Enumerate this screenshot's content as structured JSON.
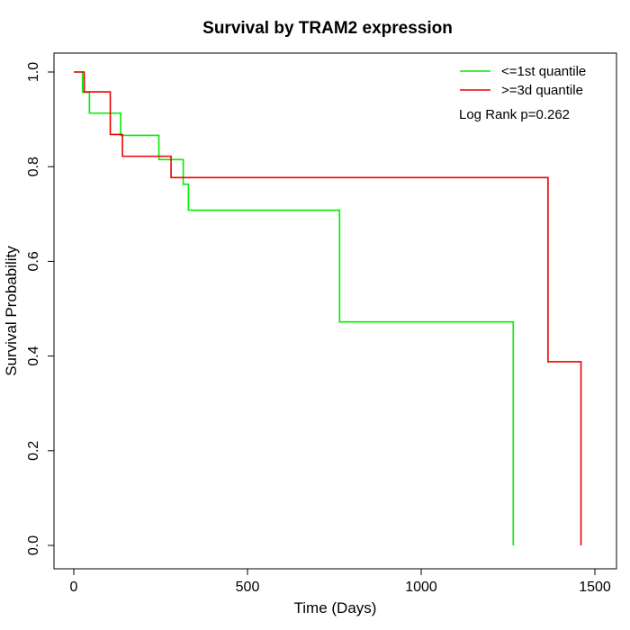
{
  "chart_data": {
    "type": "line",
    "title": "Survival by TRAM2 expression",
    "xlabel": "Time (Days)",
    "ylabel": "Survival Probability",
    "xlim": [
      0,
      1500
    ],
    "ylim": [
      0,
      1.0
    ],
    "x_ticks": [
      "0",
      "500",
      "1000",
      "1500"
    ],
    "y_ticks": [
      "0.0",
      "0.2",
      "0.4",
      "0.6",
      "0.8",
      "1.0"
    ],
    "x_tick_values": [
      0,
      500,
      1000,
      1500
    ],
    "y_tick_values": [
      0,
      0.2,
      0.4,
      0.6,
      0.8,
      1.0
    ],
    "grid": false,
    "legend_position": "top-right",
    "annotation": "Log Rank p=0.262",
    "series": [
      {
        "name": "<=1st quantile",
        "color": "#00ee00",
        "x": [
          0,
          25,
          45,
          135,
          245,
          315,
          330,
          765,
          1265
        ],
        "y": [
          1.0,
          0.957,
          0.913,
          0.866,
          0.815,
          0.763,
          0.708,
          0.472,
          0.0
        ]
      },
      {
        "name": ">=3d quantile",
        "color": "#ee0000",
        "x": [
          0,
          30,
          105,
          140,
          280,
          1365,
          1460
        ],
        "y": [
          1.0,
          0.958,
          0.868,
          0.822,
          0.777,
          0.388,
          0.0
        ]
      }
    ]
  }
}
